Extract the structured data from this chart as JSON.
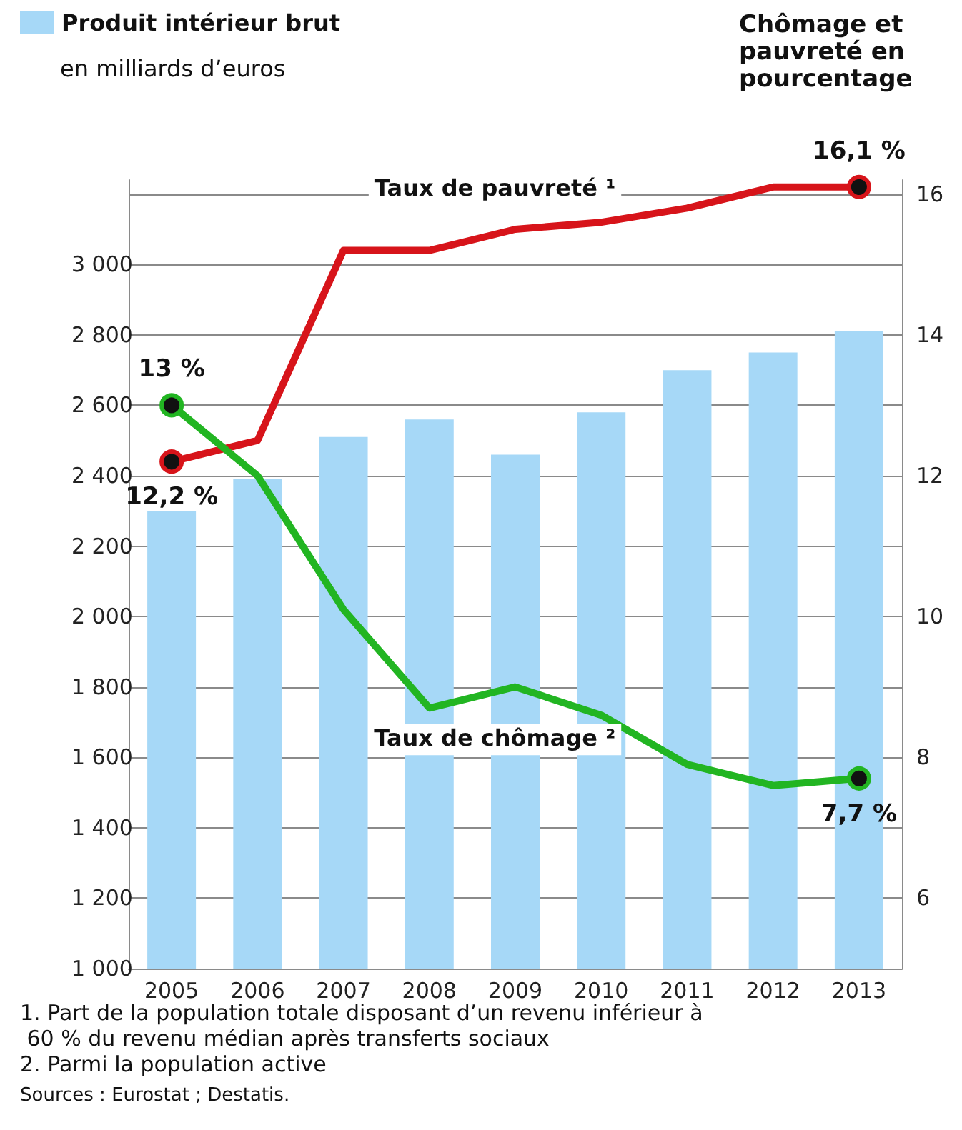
{
  "chart_data": {
    "type": "bar",
    "ylabel": "en milliards d’euros",
    "y2label": "Chômage et pauvreté en pourcentage",
    "categories": [
      "2005",
      "2006",
      "2007",
      "2008",
      "2009",
      "2010",
      "2011",
      "2012",
      "2013"
    ],
    "series": [
      {
        "name": "Produit intérieur brut",
        "color": "#a6d8f7",
        "values": [
          2300,
          2390,
          2510,
          2560,
          2460,
          2580,
          2700,
          2750,
          2810
        ]
      },
      {
        "name": "Taux de pauvreté ¹",
        "type": "line",
        "axis": "y2",
        "color": "#d7141a",
        "values": [
          12.2,
          12.5,
          15.2,
          15.2,
          15.5,
          15.6,
          15.8,
          16.1,
          16.1
        ],
        "value_labels": [
          "12,2 %",
          null,
          null,
          null,
          null,
          null,
          null,
          null,
          "16,1 %"
        ]
      },
      {
        "name": "Taux de chômage ²",
        "type": "line",
        "axis": "y2",
        "color": "#22b522",
        "values": [
          13,
          12.0,
          10.1,
          8.7,
          9.0,
          8.6,
          7.9,
          7.6,
          7.7
        ],
        "value_labels": [
          "13 %",
          null,
          null,
          null,
          null,
          null,
          null,
          null,
          "7,7 %"
        ]
      }
    ],
    "ylim": [
      1000,
      3240
    ],
    "yticks": [
      {
        "value": 1000,
        "label": "1 000"
      },
      {
        "value": 1200,
        "label": "1 200"
      },
      {
        "value": 1400,
        "label": "1 400"
      },
      {
        "value": 1600,
        "label": "1 600"
      },
      {
        "value": 1800,
        "label": "1 800"
      },
      {
        "value": 2000,
        "label": "2 000"
      },
      {
        "value": 2200,
        "label": "2 200"
      },
      {
        "value": 2400,
        "label": "2 400"
      },
      {
        "value": 2600,
        "label": "2 600"
      },
      {
        "value": 2800,
        "label": "2 800"
      },
      {
        "value": 3000,
        "label": "3 000"
      },
      {
        "value": 3200,
        "label": null
      }
    ],
    "y2lim": [
      5,
      16.2
    ],
    "y2ticks": [
      6,
      8,
      10,
      12,
      14,
      16
    ],
    "grid": "y",
    "legend": "top left",
    "line_style": "solid",
    "annotations": [
      "1. Part de la population totale disposant d’un revenu inférieur à 60 % du revenu médian après transferts sociaux",
      "2. Parmi la population active",
      "Sources : Eurostat ; Destatis."
    ]
  }
}
